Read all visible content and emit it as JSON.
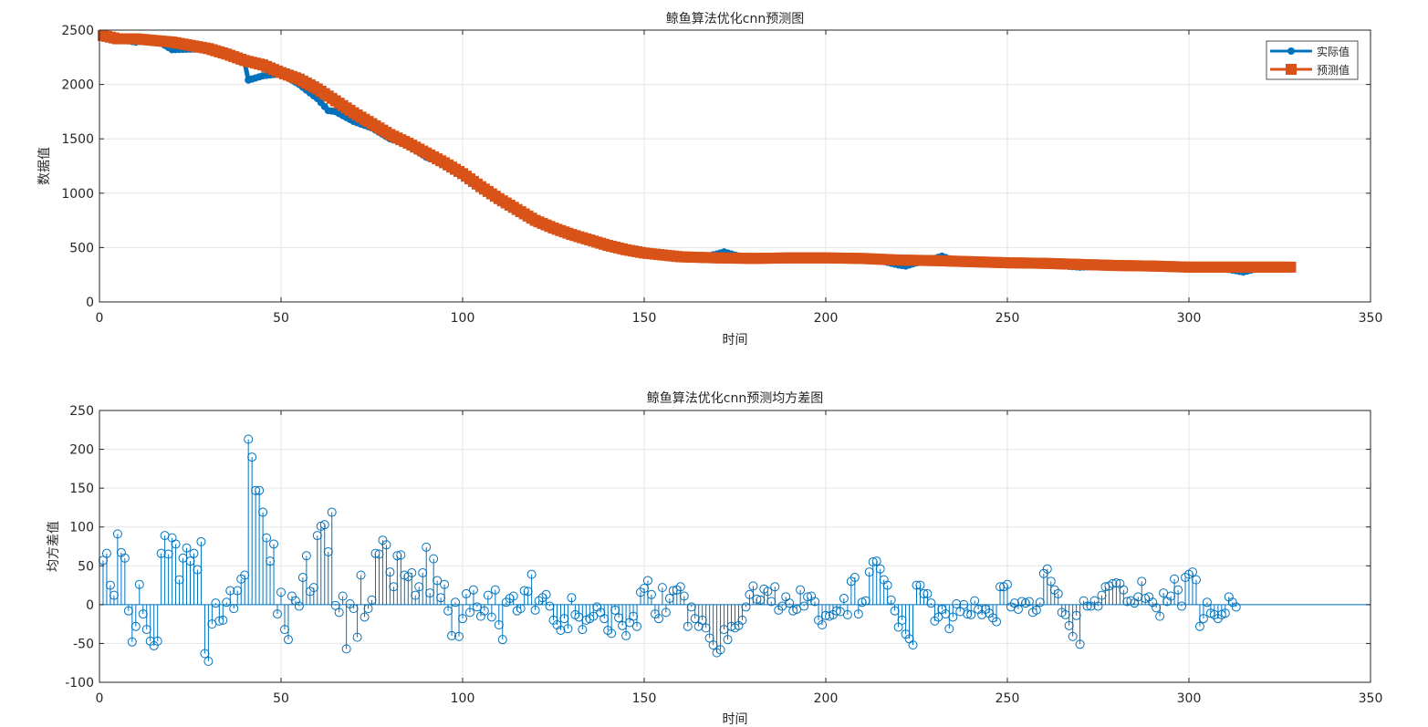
{
  "colors": {
    "actual": "#0072BD",
    "predicted": "#D95319",
    "stem": "#0072BD",
    "grid": "#e6e6e6",
    "axis": "#262626"
  },
  "chart_data": [
    {
      "type": "line",
      "title": "鲸鱼算法优化cnn预测图",
      "xlabel": "时间",
      "ylabel": "数据值",
      "xlim": [
        0,
        350
      ],
      "ylim": [
        0,
        2500
      ],
      "xticks": [
        0,
        50,
        100,
        150,
        200,
        250,
        300,
        350
      ],
      "yticks": [
        0,
        500,
        1000,
        1500,
        2000,
        2500
      ],
      "grid": true,
      "legend_location": "top-right",
      "x_range": [
        1,
        328
      ],
      "series": [
        {
          "name": "实际值",
          "marker": "circle",
          "keypoints": [
            [
              1,
              2440
            ],
            [
              10,
              2390
            ],
            [
              15,
              2420
            ],
            [
              20,
              2320
            ],
            [
              30,
              2330
            ],
            [
              35,
              2290
            ],
            [
              40,
              2200
            ],
            [
              41,
              2040
            ],
            [
              45,
              2080
            ],
            [
              50,
              2100
            ],
            [
              55,
              2000
            ],
            [
              60,
              1870
            ],
            [
              63,
              1760
            ],
            [
              65,
              1750
            ],
            [
              70,
              1660
            ],
            [
              75,
              1600
            ],
            [
              80,
              1500
            ],
            [
              85,
              1450
            ],
            [
              90,
              1330
            ],
            [
              95,
              1280
            ],
            [
              100,
              1170
            ],
            [
              105,
              1040
            ],
            [
              110,
              930
            ],
            [
              115,
              830
            ],
            [
              120,
              740
            ],
            [
              125,
              670
            ],
            [
              130,
              610
            ],
            [
              135,
              550
            ],
            [
              140,
              510
            ],
            [
              145,
              470
            ],
            [
              150,
              445
            ],
            [
              160,
              410
            ],
            [
              165,
              405
            ],
            [
              170,
              440
            ],
            [
              172,
              460
            ],
            [
              175,
              430
            ],
            [
              180,
              395
            ],
            [
              190,
              395
            ],
            [
              200,
              405
            ],
            [
              210,
              410
            ],
            [
              215,
              380
            ],
            [
              220,
              340
            ],
            [
              222,
              330
            ],
            [
              225,
              360
            ],
            [
              230,
              400
            ],
            [
              232,
              420
            ],
            [
              235,
              385
            ],
            [
              240,
              375
            ],
            [
              250,
              360
            ],
            [
              260,
              345
            ],
            [
              270,
              320
            ],
            [
              275,
              330
            ],
            [
              280,
              345
            ],
            [
              285,
              325
            ],
            [
              290,
              320
            ],
            [
              300,
              320
            ],
            [
              305,
              315
            ],
            [
              310,
              305
            ],
            [
              315,
              275
            ],
            [
              318,
              300
            ],
            [
              320,
              320
            ],
            [
              328,
              310
            ]
          ]
        },
        {
          "name": "预测值",
          "marker": "square",
          "keypoints": [
            [
              1,
              2450
            ],
            [
              5,
              2420
            ],
            [
              10,
              2420
            ],
            [
              20,
              2390
            ],
            [
              30,
              2330
            ],
            [
              35,
              2280
            ],
            [
              40,
              2220
            ],
            [
              45,
              2180
            ],
            [
              50,
              2110
            ],
            [
              55,
              2050
            ],
            [
              60,
              1960
            ],
            [
              65,
              1850
            ],
            [
              70,
              1740
            ],
            [
              75,
              1640
            ],
            [
              80,
              1540
            ],
            [
              85,
              1460
            ],
            [
              90,
              1370
            ],
            [
              95,
              1280
            ],
            [
              100,
              1180
            ],
            [
              105,
              1060
            ],
            [
              110,
              950
            ],
            [
              115,
              850
            ],
            [
              120,
              750
            ],
            [
              125,
              680
            ],
            [
              130,
              620
            ],
            [
              135,
              570
            ],
            [
              140,
              520
            ],
            [
              145,
              480
            ],
            [
              150,
              450
            ],
            [
              160,
              415
            ],
            [
              170,
              405
            ],
            [
              180,
              400
            ],
            [
              190,
              405
            ],
            [
              200,
              405
            ],
            [
              210,
              400
            ],
            [
              220,
              385
            ],
            [
              230,
              380
            ],
            [
              240,
              370
            ],
            [
              250,
              360
            ],
            [
              260,
              355
            ],
            [
              270,
              345
            ],
            [
              280,
              335
            ],
            [
              290,
              330
            ],
            [
              300,
              320
            ],
            [
              310,
              320
            ],
            [
              320,
              320
            ],
            [
              328,
              320
            ]
          ]
        }
      ]
    },
    {
      "type": "stem",
      "title": "鲸鱼算法优化cnn预测均方差图",
      "xlabel": "时间",
      "ylabel": "均方差值",
      "xlim": [
        0,
        350
      ],
      "ylim": [
        -100,
        250
      ],
      "xticks": [
        0,
        50,
        100,
        150,
        200,
        250,
        300,
        350
      ],
      "yticks": [
        -100,
        -50,
        0,
        50,
        100,
        150,
        200,
        250
      ],
      "grid": true,
      "x_start": 1,
      "values": [
        57,
        66,
        25,
        12,
        91,
        67,
        60,
        -8,
        -48,
        -28,
        26,
        -12,
        -32,
        -47,
        -53,
        -47,
        66,
        89,
        65,
        86,
        78,
        32,
        60,
        73,
        56,
        66,
        45,
        81,
        -63,
        -73,
        -25,
        2,
        -21,
        -20,
        3,
        18,
        -5,
        18,
        33,
        38,
        213,
        190,
        147,
        147,
        119,
        86,
        56,
        78,
        -12,
        16,
        -32,
        -45,
        11,
        5,
        -2,
        35,
        63,
        17,
        22,
        89,
        101,
        103,
        68,
        119,
        -1,
        -10,
        11,
        -57,
        1,
        -5,
        -42,
        38,
        -16,
        -5,
        6,
        66,
        65,
        83,
        77,
        42,
        23,
        63,
        64,
        38,
        36,
        41,
        12,
        23,
        41,
        74,
        15,
        59,
        31,
        9,
        26,
        -8,
        -40,
        3,
        -41,
        -18,
        14,
        -10,
        19,
        -3,
        -15,
        -8,
        12,
        -16,
        19,
        -26,
        -45,
        3,
        8,
        11,
        -8,
        -5,
        18,
        17,
        39,
        -7,
        5,
        9,
        13,
        -2,
        -20,
        -26,
        -33,
        -18,
        -31,
        9,
        -13,
        -16,
        -32,
        -20,
        -18,
        -15,
        -3,
        -10,
        -18,
        -33,
        -37,
        -7,
        -17,
        -27,
        -40,
        -23,
        -15,
        -28,
        16,
        21,
        31,
        13,
        -12,
        -18,
        22,
        -10,
        8,
        18,
        19,
        23,
        11,
        -28,
        -3,
        -18,
        -28,
        -20,
        -30,
        -43,
        -52,
        -62,
        -58,
        -32,
        -45,
        -28,
        -30,
        -27,
        -20,
        -3,
        13,
        24,
        7,
        6,
        20,
        17,
        4,
        23,
        -7,
        -2,
        10,
        2,
        -8,
        -6,
        19,
        -2,
        10,
        11,
        4,
        -20,
        -26,
        -14,
        -15,
        -13,
        -8,
        -9,
        8,
        -13,
        30,
        35,
        -12,
        3,
        5,
        42,
        55,
        56,
        46,
        32,
        25,
        6,
        -8,
        -29,
        -20,
        -38,
        -44,
        -52,
        25,
        25,
        14,
        14,
        2,
        -21,
        -16,
        -6,
        -12,
        -31,
        -16,
        1,
        -9,
        0,
        -12,
        -13,
        5,
        -6,
        -13,
        -6,
        -11,
        -17,
        -22,
        23,
        23,
        26,
        -3,
        2,
        -6,
        4,
        2,
        4,
        -10,
        -7,
        3,
        40,
        46,
        30,
        19,
        14,
        -10,
        -13,
        -27,
        -41,
        -14,
        -51,
        5,
        -2,
        -2,
        5,
        -2,
        12,
        23,
        24,
        27,
        28,
        27,
        19,
        4,
        5,
        2,
        10,
        30,
        8,
        10,
        3,
        -4,
        -15,
        15,
        4,
        11,
        33,
        19,
        -2,
        35,
        39,
        42,
        32,
        -28,
        -18,
        3,
        -11,
        -13,
        -18,
        -13,
        -11,
        10,
        3,
        -3
      ]
    }
  ]
}
